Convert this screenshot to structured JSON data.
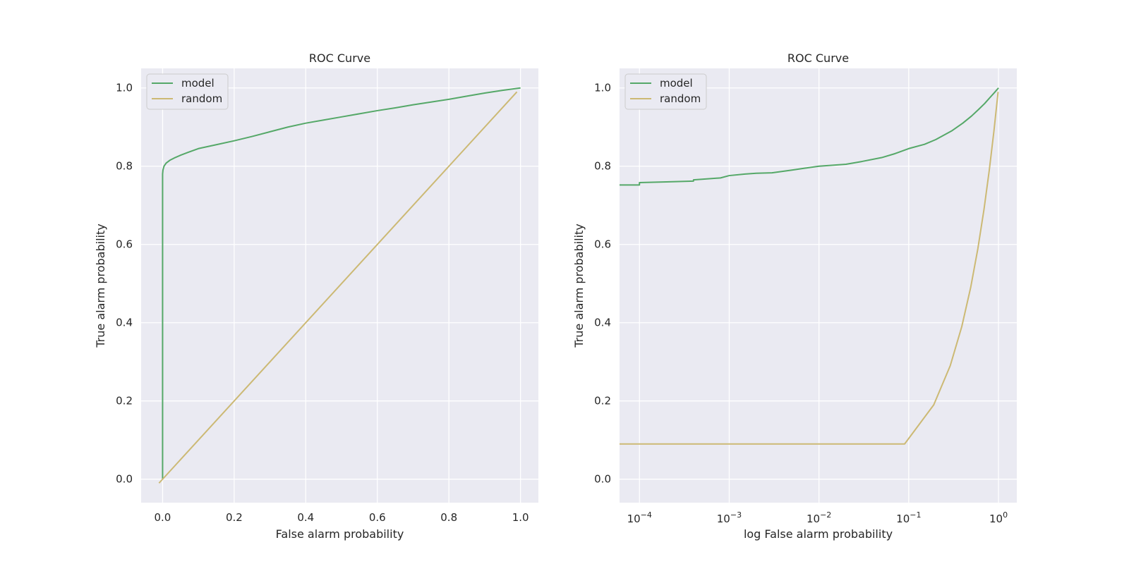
{
  "chart_data": [
    {
      "type": "line",
      "title": "ROC Curve",
      "xlabel": "False alarm probability",
      "ylabel": "True alarm probability",
      "xscale": "linear",
      "xlim": [
        -0.06,
        1.05
      ],
      "ylim": [
        -0.06,
        1.05
      ],
      "xticks": [
        0.0,
        0.2,
        0.4,
        0.6,
        0.8,
        1.0
      ],
      "xtick_labels": [
        "0.0",
        "0.2",
        "0.4",
        "0.6",
        "0.8",
        "1.0"
      ],
      "yticks": [
        0.0,
        0.2,
        0.4,
        0.6,
        0.8,
        1.0
      ],
      "ytick_labels": [
        "0.0",
        "0.2",
        "0.4",
        "0.6",
        "0.8",
        "1.0"
      ],
      "grid": true,
      "legend": "upper left",
      "series": [
        {
          "name": "model",
          "color": "#55a868",
          "x": [
            0.0,
            0.0,
            0.0,
            0.0,
            0.001,
            0.004,
            0.01,
            0.02,
            0.035,
            0.05,
            0.07,
            0.1,
            0.15,
            0.2,
            0.25,
            0.3,
            0.35,
            0.4,
            0.45,
            0.5,
            0.55,
            0.6,
            0.65,
            0.7,
            0.75,
            0.8,
            0.85,
            0.9,
            0.95,
            1.0
          ],
          "y": [
            0.0,
            0.6,
            0.75,
            0.78,
            0.79,
            0.8,
            0.808,
            0.815,
            0.822,
            0.828,
            0.835,
            0.845,
            0.855,
            0.865,
            0.876,
            0.888,
            0.9,
            0.91,
            0.918,
            0.926,
            0.934,
            0.942,
            0.949,
            0.957,
            0.964,
            0.971,
            0.979,
            0.987,
            0.994,
            1.0
          ]
        },
        {
          "name": "random",
          "color": "#ccb974",
          "x": [
            -0.01,
            0.99
          ],
          "y": [
            -0.01,
            0.99
          ]
        }
      ]
    },
    {
      "type": "line",
      "title": "ROC Curve",
      "xlabel": "log False alarm probability",
      "ylabel": "True alarm probability",
      "xscale": "log",
      "xlim": [
        6e-05,
        1.6
      ],
      "ylim": [
        -0.06,
        1.05
      ],
      "xticks": [
        0.0001,
        0.001,
        0.01,
        0.1,
        1
      ],
      "xtick_labels": [
        {
          "base": "10",
          "exp": "−4"
        },
        {
          "base": "10",
          "exp": "−3"
        },
        {
          "base": "10",
          "exp": "−2"
        },
        {
          "base": "10",
          "exp": "−1"
        },
        {
          "base": "10",
          "exp": "0"
        }
      ],
      "yticks": [
        0.0,
        0.2,
        0.4,
        0.6,
        0.8,
        1.0
      ],
      "ytick_labels": [
        "0.0",
        "0.2",
        "0.4",
        "0.6",
        "0.8",
        "1.0"
      ],
      "grid": true,
      "legend": "upper left",
      "series": [
        {
          "name": "model",
          "color": "#55a868",
          "x": [
            6e-05,
            0.0001,
            0.0001,
            0.0002,
            0.0004,
            0.0004,
            0.0006,
            0.0008,
            0.001,
            0.0015,
            0.002,
            0.003,
            0.005,
            0.007,
            0.01,
            0.02,
            0.03,
            0.05,
            0.07,
            0.1,
            0.15,
            0.2,
            0.3,
            0.4,
            0.5,
            0.6,
            0.7,
            0.8,
            0.9,
            1.0
          ],
          "y": [
            0.752,
            0.752,
            0.758,
            0.76,
            0.762,
            0.765,
            0.768,
            0.77,
            0.776,
            0.78,
            0.782,
            0.783,
            0.79,
            0.795,
            0.8,
            0.805,
            0.812,
            0.822,
            0.832,
            0.845,
            0.856,
            0.868,
            0.89,
            0.91,
            0.928,
            0.945,
            0.96,
            0.975,
            0.988,
            1.0
          ]
        },
        {
          "name": "random",
          "color": "#ccb974",
          "x": [
            6e-05,
            0.09,
            0.19,
            0.29,
            0.39,
            0.49,
            0.59,
            0.69,
            0.79,
            0.89,
            0.99
          ],
          "y": [
            0.09,
            0.09,
            0.19,
            0.29,
            0.39,
            0.49,
            0.59,
            0.69,
            0.79,
            0.89,
            0.99
          ]
        }
      ]
    }
  ]
}
